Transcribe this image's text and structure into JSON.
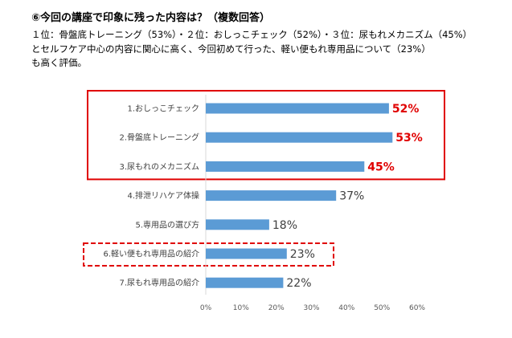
{
  "heading": "⑥今回の講座で印象に残った内容は？（複数回答）",
  "summary_lines": [
    "１位：骨盤底トレーニング（53%）・２位：おしっこチェック（52%）・３位：尿もれメカニズム（45%）",
    "とセルフケア中心の内容に関心に高く、今回初めて行った、軽い便もれ専用品について（23%）",
    "も高く評価。"
  ],
  "colors": {
    "bar": "#5b9bd5",
    "highlight_solid": "#e00000",
    "highlight_dashed": "#e00000",
    "label_highlight": "#e00000",
    "label_normal": "#404040",
    "axis": "#d9d9d9"
  },
  "chart_data": {
    "type": "bar",
    "orientation": "horizontal",
    "categories": [
      "1.おしっこチェック",
      "2.骨盤底トレーニング",
      "3.尿もれのメカニズム",
      "4.排泄リハケア体操",
      "5.専用品の選び方",
      "6.軽い便もれ専用品の紹介",
      "7.尿もれ専用品の紹介"
    ],
    "values": [
      52,
      53,
      45,
      37,
      18,
      23,
      22
    ],
    "value_labels": [
      "52%",
      "53%",
      "45%",
      "37%",
      "18%",
      "23%",
      "22%"
    ],
    "highlighted_labels": [
      true,
      true,
      true,
      false,
      false,
      false,
      false
    ],
    "xlim": [
      0,
      60
    ],
    "x_ticks": [
      0,
      10,
      20,
      30,
      40,
      50,
      60
    ],
    "x_tick_labels": [
      "0%",
      "10%",
      "20%",
      "30%",
      "40%",
      "50%",
      "60%"
    ],
    "grid": false,
    "highlight_boxes": [
      {
        "style": "solid",
        "from": 0,
        "to": 2
      },
      {
        "style": "dashed",
        "from": 5,
        "to": 5
      }
    ]
  }
}
